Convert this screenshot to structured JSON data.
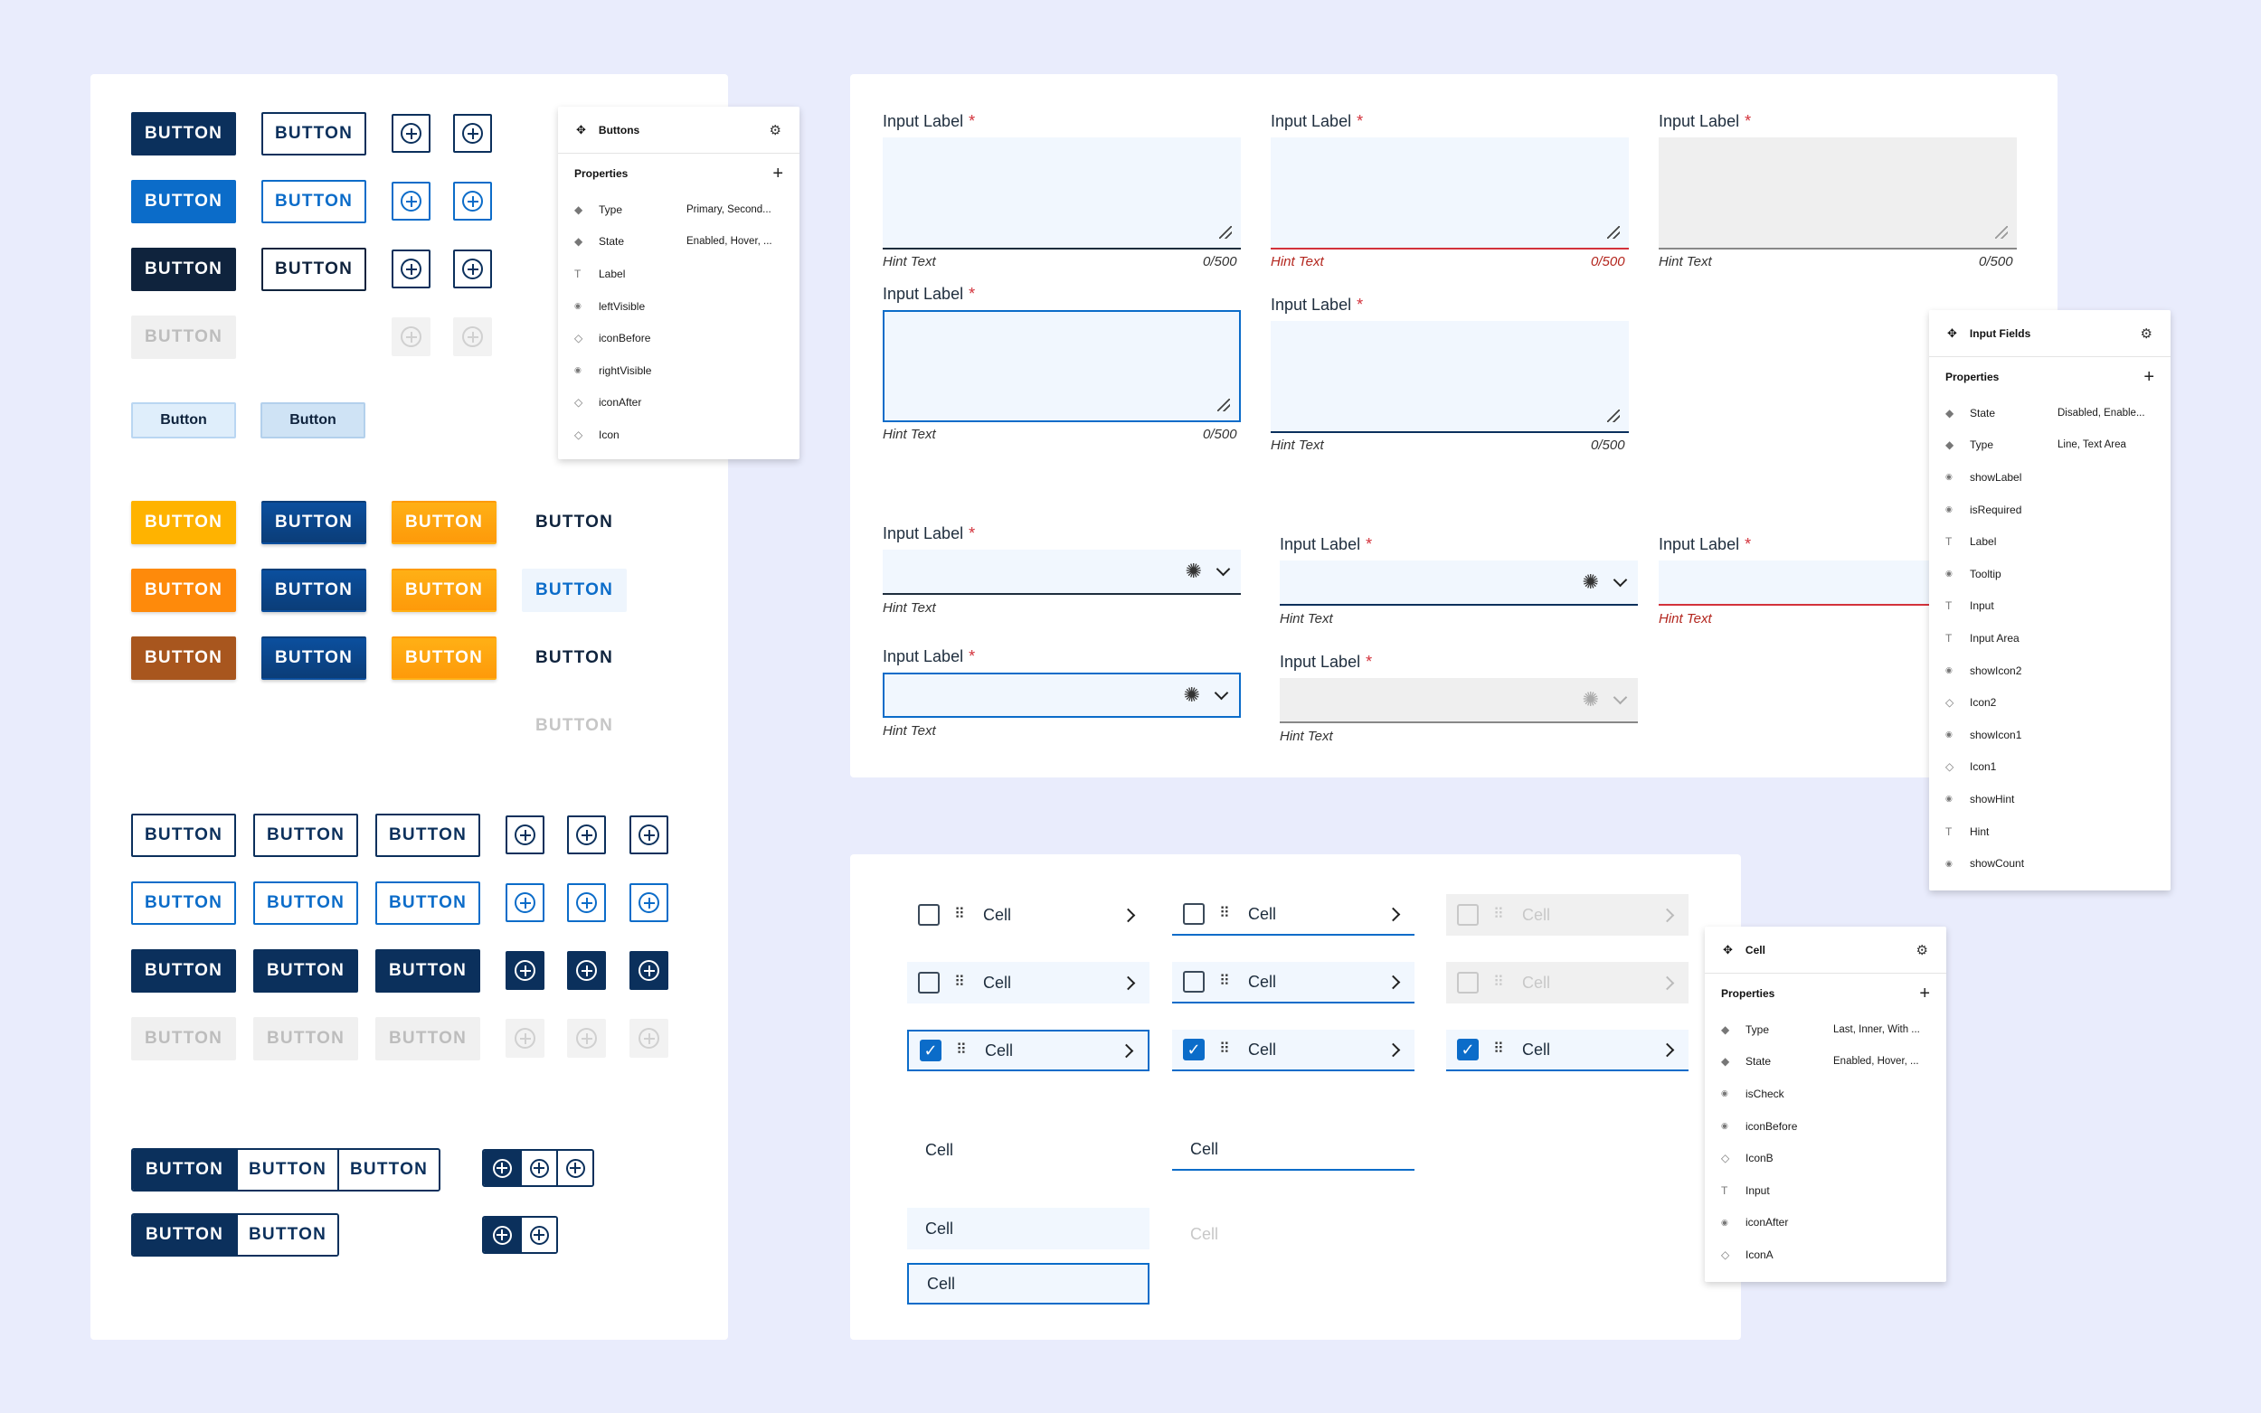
{
  "buttons": {
    "label": "BUTTON",
    "label_mixed": "Button",
    "panel": {
      "title": "Buttons",
      "section": "Properties",
      "rows": [
        {
          "icon": "diamond-filled-icon",
          "name": "Type",
          "value": "Primary, Second..."
        },
        {
          "icon": "diamond-filled-icon",
          "name": "State",
          "value": "Enabled, Hover, ..."
        },
        {
          "icon": "text-t-icon",
          "name": "Label",
          "value": ""
        },
        {
          "icon": "eye-icon",
          "name": "leftVisible",
          "value": ""
        },
        {
          "icon": "diamond-outline-icon",
          "name": "iconBefore",
          "value": ""
        },
        {
          "icon": "eye-icon",
          "name": "rightVisible",
          "value": ""
        },
        {
          "icon": "diamond-outline-icon",
          "name": "iconAfter",
          "value": ""
        },
        {
          "icon": "diamond-outline-icon",
          "name": "Icon",
          "value": ""
        }
      ]
    }
  },
  "inputs": {
    "label": "Input Label",
    "required_mark": "*",
    "hint": "Hint Text",
    "count": "0/500",
    "panel": {
      "title": "Input Fields",
      "section": "Properties",
      "rows": [
        {
          "icon": "diamond-filled-icon",
          "name": "State",
          "value": "Disabled, Enable..."
        },
        {
          "icon": "diamond-filled-icon",
          "name": "Type",
          "value": "Line, Text Area"
        },
        {
          "icon": "eye-icon",
          "name": "showLabel",
          "value": ""
        },
        {
          "icon": "eye-icon",
          "name": "isRequired",
          "value": ""
        },
        {
          "icon": "text-t-icon",
          "name": "Label",
          "value": ""
        },
        {
          "icon": "eye-icon",
          "name": "Tooltip",
          "value": ""
        },
        {
          "icon": "text-t-icon",
          "name": "Input",
          "value": ""
        },
        {
          "icon": "text-t-icon",
          "name": "Input Area",
          "value": ""
        },
        {
          "icon": "eye-icon",
          "name": "showIcon2",
          "value": ""
        },
        {
          "icon": "diamond-outline-icon",
          "name": "Icon2",
          "value": ""
        },
        {
          "icon": "eye-icon",
          "name": "showIcon1",
          "value": ""
        },
        {
          "icon": "diamond-outline-icon",
          "name": "Icon1",
          "value": ""
        },
        {
          "icon": "eye-icon",
          "name": "showHint",
          "value": ""
        },
        {
          "icon": "text-t-icon",
          "name": "Hint",
          "value": ""
        },
        {
          "icon": "eye-icon",
          "name": "showCount",
          "value": ""
        }
      ]
    }
  },
  "cells": {
    "label": "Cell",
    "panel": {
      "title": "Cell",
      "section": "Properties",
      "rows": [
        {
          "icon": "diamond-filled-icon",
          "name": "Type",
          "value": "Last, Inner, With ..."
        },
        {
          "icon": "diamond-filled-icon",
          "name": "State",
          "value": "Enabled, Hover, ..."
        },
        {
          "icon": "eye-icon",
          "name": "isCheck",
          "value": ""
        },
        {
          "icon": "eye-icon",
          "name": "iconBefore",
          "value": ""
        },
        {
          "icon": "diamond-outline-icon",
          "name": "IconB",
          "value": ""
        },
        {
          "icon": "text-t-icon",
          "name": "Input",
          "value": ""
        },
        {
          "icon": "eye-icon",
          "name": "iconAfter",
          "value": ""
        },
        {
          "icon": "diamond-outline-icon",
          "name": "IconA",
          "value": ""
        }
      ]
    }
  },
  "colors": {
    "navy": "#0b305c",
    "blue": "#0b6cc9",
    "error": "#d3323b",
    "yellow": "#ffb300",
    "orange": "#fe8a0b",
    "brown": "#a8561e"
  }
}
